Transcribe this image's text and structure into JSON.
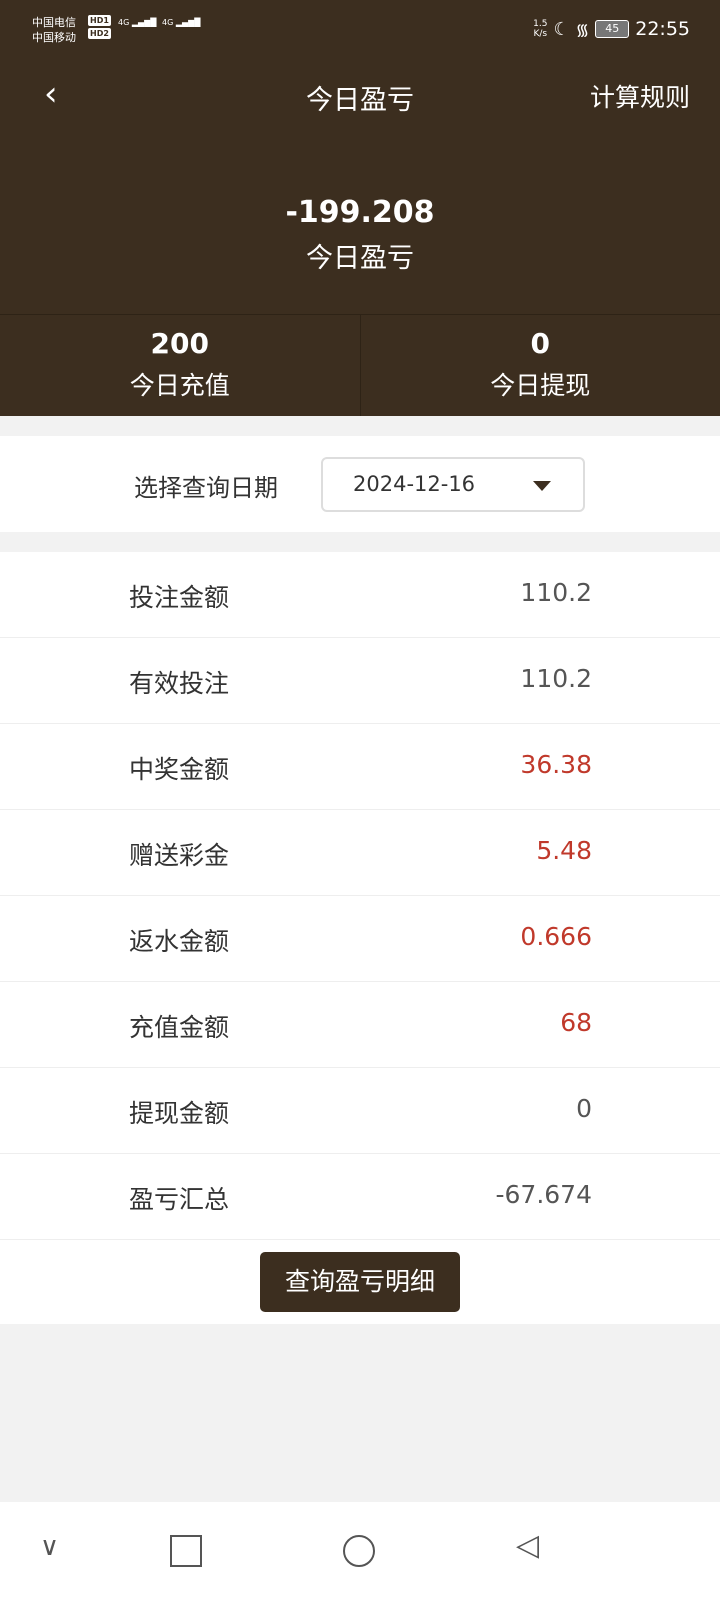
{
  "status_bar": {
    "carrier1": "中国电信",
    "carrier2": "中国移动",
    "hd1": "HD1",
    "hd2": "HD2",
    "net1": "4G",
    "net2": "4G",
    "speed": "1.5",
    "speed_unit": "K/s",
    "battery": "45",
    "time": "22:55"
  },
  "header": {
    "title": "今日盈亏",
    "rules": "计算规则"
  },
  "summary": {
    "value": "-199.208",
    "label": "今日盈亏"
  },
  "stats": [
    {
      "value": "200",
      "label": "今日充值"
    },
    {
      "value": "0",
      "label": "今日提现"
    }
  ],
  "date": {
    "label": "选择查询日期",
    "value": "2024-12-16"
  },
  "rows": [
    {
      "label": "投注金额",
      "value": "110.2"
    },
    {
      "label": "有效投注",
      "value": "110.2"
    },
    {
      "label": "中奖金额",
      "value": "36.38"
    },
    {
      "label": "赠送彩金",
      "value": "5.48"
    },
    {
      "label": "返水金额",
      "value": "0.666"
    },
    {
      "label": "充值金额",
      "value": "68"
    },
    {
      "label": "提现金额",
      "value": "0"
    },
    {
      "label": "盈亏汇总",
      "value": "-67.674"
    }
  ],
  "button": "查询盈亏明细",
  "colors": {
    "header": "#3c2e1f",
    "highlight": "#c0392b"
  }
}
